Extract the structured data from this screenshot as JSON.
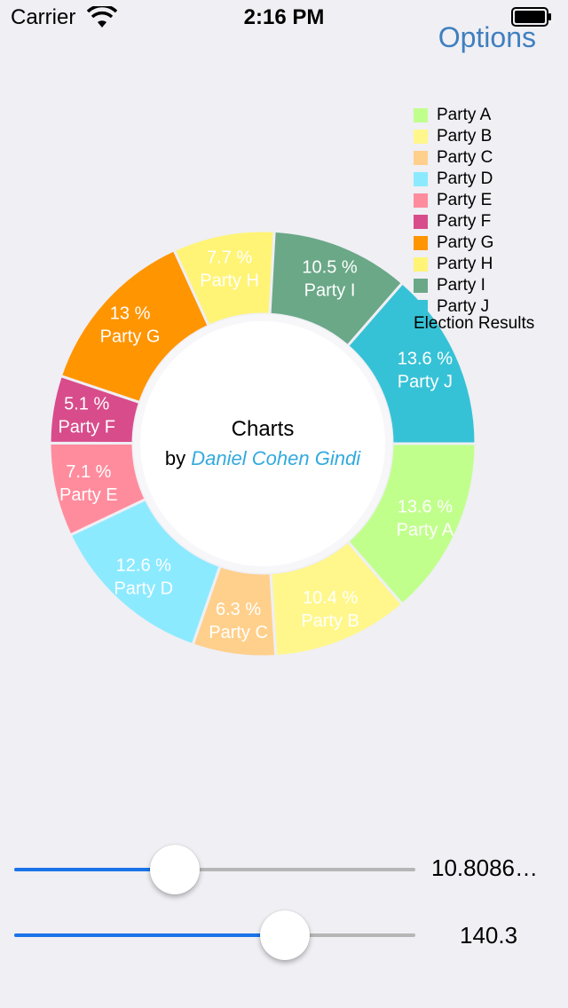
{
  "status_bar": {
    "carrier": "Carrier",
    "time": "2:16 PM"
  },
  "nav": {
    "options_label": "Options"
  },
  "center": {
    "title": "Charts",
    "by": "by",
    "author": "Daniel Cohen Gindi"
  },
  "legend": {
    "description": "Election Results",
    "items": [
      {
        "label": "Party A",
        "color": "#c1ff8c"
      },
      {
        "label": "Party B",
        "color": "#fff78c"
      },
      {
        "label": "Party C",
        "color": "#ffd08c"
      },
      {
        "label": "Party D",
        "color": "#8ceaff"
      },
      {
        "label": "Party E",
        "color": "#ff8c9d"
      },
      {
        "label": "Party F",
        "color": "#d84c8b"
      },
      {
        "label": "Party G",
        "color": "#ff9500"
      },
      {
        "label": "Party H",
        "color": "#fff476"
      },
      {
        "label": "Party I",
        "color": "#6aa887"
      },
      {
        "label": "Party J",
        "color": "#36c2d6"
      }
    ]
  },
  "chart_data": {
    "type": "pie",
    "categories": [
      "Party A",
      "Party B",
      "Party C",
      "Party D",
      "Party E",
      "Party F",
      "Party G",
      "Party H",
      "Party I",
      "Party J"
    ],
    "values": [
      13.6,
      10.4,
      6.3,
      12.6,
      7.1,
      5.1,
      13.0,
      7.7,
      10.5,
      13.6
    ],
    "value_labels": [
      "13.6 %",
      "10.4 %",
      "6.3 %",
      "12.6 %",
      "7.1 %",
      "5.1 %",
      "13 %",
      "7.7 %",
      "10.5 %",
      "13.6 %"
    ],
    "title": "",
    "legend_position": "top-right",
    "hole": true
  },
  "sliders": [
    {
      "fraction": 0.4,
      "value_text": "10.8086…"
    },
    {
      "fraction": 0.675,
      "value_text": "140.3"
    }
  ]
}
